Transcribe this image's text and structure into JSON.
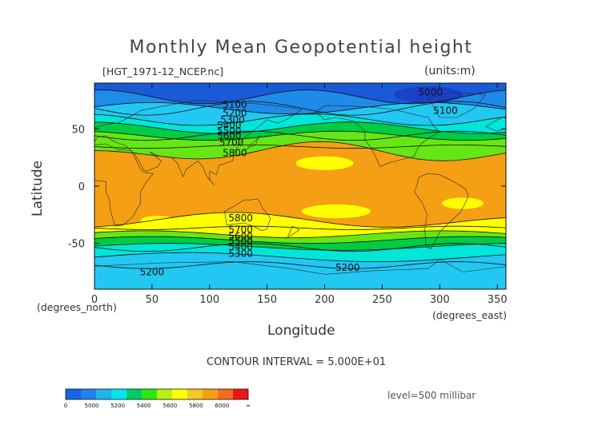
{
  "chart_data": {
    "type": "heatmap",
    "title": "Monthly Mean Geopotential height",
    "file_label": "[HGT_1971-12_NCEP.nc]",
    "units_label": "(units:m)",
    "xlabel": "Longitude",
    "ylabel": "Latitude",
    "x_units_label": "(degrees_east)",
    "y_units_label": "(degrees_north)",
    "xlim": [
      0,
      357.5
    ],
    "ylim": [
      -90,
      90
    ],
    "x_ticks": [
      "0",
      "50",
      "100",
      "150",
      "200",
      "250",
      "300",
      "350"
    ],
    "y_ticks": [
      "50",
      "0",
      "-50"
    ],
    "contour_interval_text": "CONTOUR INTERVAL = 5.000E+01",
    "level_text": "level=500 millibar",
    "contour_labels": [
      {
        "text": "5000",
        "lon": 292,
        "lat": 82
      },
      {
        "text": "5100",
        "lon": 305,
        "lat": 66
      },
      {
        "text": "5100",
        "lon": 122,
        "lat": 71
      },
      {
        "text": "5200",
        "lon": 122,
        "lat": 64
      },
      {
        "text": "5300",
        "lon": 120,
        "lat": 58
      },
      {
        "text": "5400",
        "lon": 117,
        "lat": 53
      },
      {
        "text": "5500",
        "lon": 117,
        "lat": 48
      },
      {
        "text": "5600",
        "lon": 117,
        "lat": 44
      },
      {
        "text": "5700",
        "lon": 119,
        "lat": 38
      },
      {
        "text": "5800",
        "lon": 122,
        "lat": 29
      },
      {
        "text": "5800",
        "lon": 127,
        "lat": -28
      },
      {
        "text": "5700",
        "lon": 127,
        "lat": -38
      },
      {
        "text": "5600",
        "lon": 127,
        "lat": -44
      },
      {
        "text": "5500",
        "lon": 127,
        "lat": -48
      },
      {
        "text": "5400",
        "lon": 127,
        "lat": -53
      },
      {
        "text": "5300",
        "lon": 127,
        "lat": -59
      },
      {
        "text": "5200",
        "lon": 50,
        "lat": -75
      },
      {
        "text": "5200",
        "lon": 220,
        "lat": -71
      }
    ],
    "colorbar": {
      "boundaries": [
        "0",
        "5000",
        "5200",
        "5400",
        "5600",
        "5800",
        "6000",
        "∞"
      ],
      "colors": [
        "#1464e6",
        "#1e82e8",
        "#1eb4f0",
        "#00e6f0",
        "#00cc66",
        "#2ee614",
        "#b4f014",
        "#ffff00",
        "#f5c828",
        "#f5a014",
        "#f06e1e",
        "#f01414"
      ]
    },
    "bands_m": [
      {
        "name": "below 5000",
        "color": "#1a5ad8"
      },
      {
        "name": "5000-5200",
        "color": "#1e8be8"
      },
      {
        "name": "5200-5400",
        "color": "#22c8f2"
      },
      {
        "name": "5400-5500",
        "color": "#00e6d8"
      },
      {
        "name": "5500-5600",
        "color": "#00cc44"
      },
      {
        "name": "5600-5700",
        "color": "#66e614"
      },
      {
        "name": "5700-5800",
        "color": "#ffff00"
      },
      {
        "name": "above 5800",
        "color": "#f5a014"
      }
    ]
  }
}
